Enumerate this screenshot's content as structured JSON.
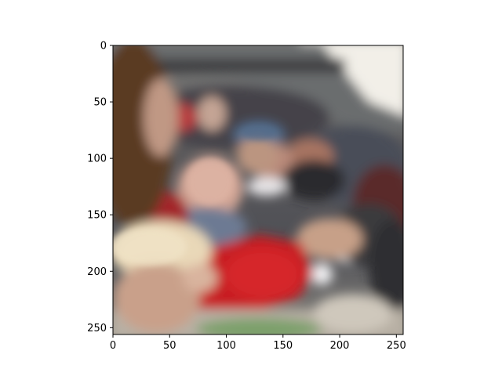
{
  "chart_data": {
    "type": "image",
    "title": "",
    "xlabel": "",
    "ylabel": "",
    "xlim": [
      0,
      256
    ],
    "ylim": [
      256,
      0
    ],
    "y_axis_inverted": true,
    "grid": false,
    "image_description": "blurry crowd scene at a stadium: a person with long brown hair in foreground left, a bald person in the middle, a person in a blue cap behind, an arm in a red sleeve and hands holding food in the lower foreground, stadium roof at top",
    "x_ticks": [
      0,
      50,
      100,
      150,
      200,
      250
    ],
    "y_ticks": [
      0,
      50,
      100,
      150,
      200,
      250
    ],
    "x_tick_labels": [
      "0",
      "50",
      "100",
      "150",
      "200",
      "250"
    ],
    "y_tick_labels": [
      "0",
      "50",
      "100",
      "150",
      "200",
      "250"
    ]
  },
  "colors": {
    "roof": "#6b6d6e",
    "sky": "#f2efe8",
    "hair": "#5a3a22",
    "skin": "#c9a08a",
    "red_sleeve": "#c81e22",
    "cap": "#55708f",
    "crowd_dark": "#3a3a3c"
  }
}
